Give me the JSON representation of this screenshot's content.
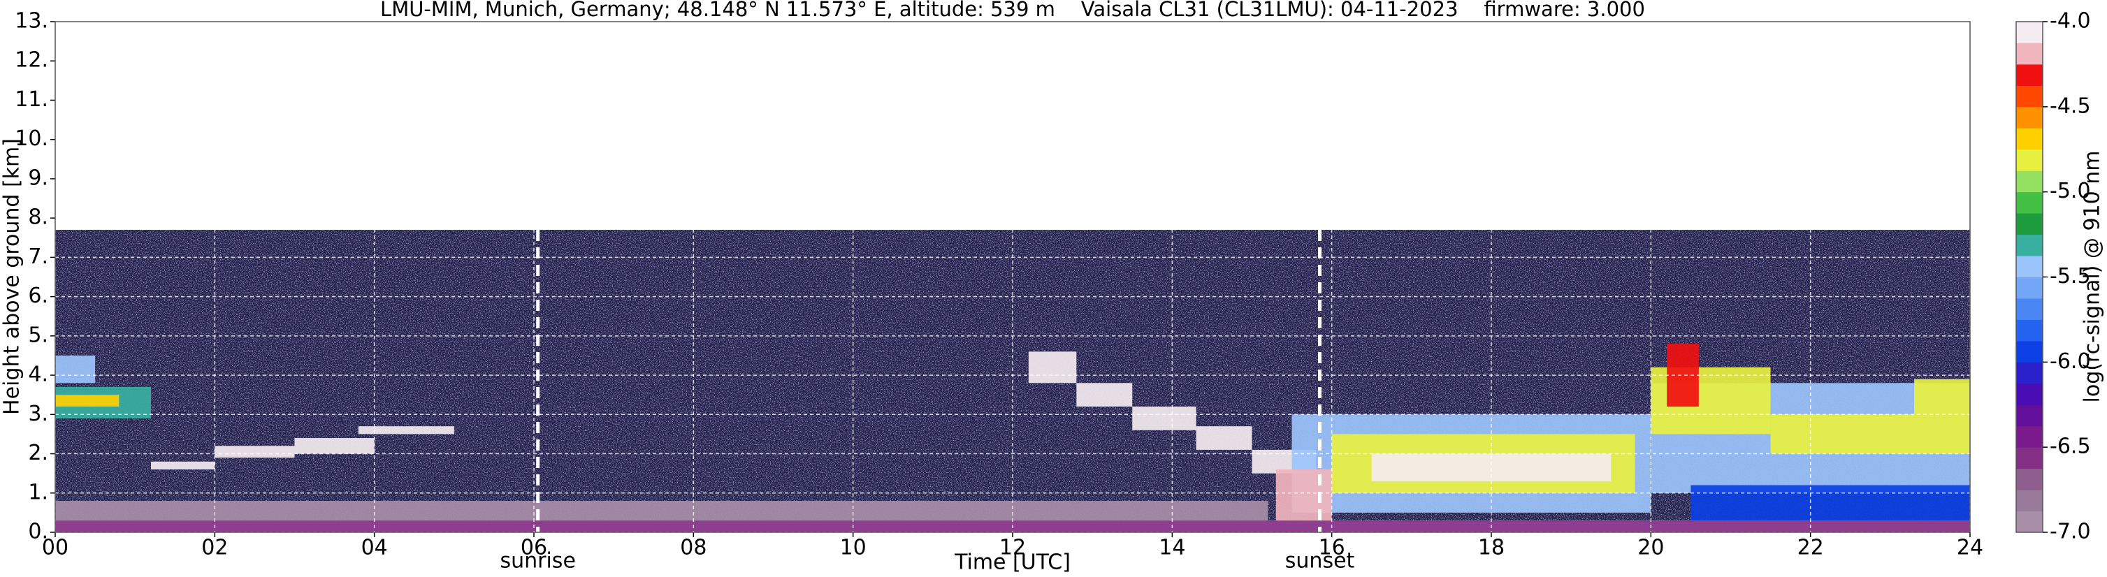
{
  "chart_data": {
    "type": "heatmap",
    "title": "LMU-MIM, Munich, Germany; 48.148° N 11.573° E, altitude: 539 m    Vaisala CL31 (CL31LMU): 04-11-2023    firmware: 3.000",
    "xlabel": "Time [UTC]",
    "ylabel": "Height above ground [km]",
    "xlim": [
      0,
      24
    ],
    "ylim": [
      0,
      13
    ],
    "xticks": [
      {
        "value": 0,
        "label": "00"
      },
      {
        "value": 2,
        "label": "02"
      },
      {
        "value": 4,
        "label": "04"
      },
      {
        "value": 6,
        "label": "06"
      },
      {
        "value": 8,
        "label": "08"
      },
      {
        "value": 10,
        "label": "10"
      },
      {
        "value": 12,
        "label": "12"
      },
      {
        "value": 14,
        "label": "14"
      },
      {
        "value": 16,
        "label": "16"
      },
      {
        "value": 18,
        "label": "18"
      },
      {
        "value": 20,
        "label": "20"
      },
      {
        "value": 22,
        "label": "22"
      },
      {
        "value": 24,
        "label": "24"
      }
    ],
    "yticks": [
      {
        "value": 0,
        "label": "0."
      },
      {
        "value": 1,
        "label": "1."
      },
      {
        "value": 2,
        "label": "2."
      },
      {
        "value": 3,
        "label": "3."
      },
      {
        "value": 4,
        "label": "4."
      },
      {
        "value": 5,
        "label": "5."
      },
      {
        "value": 6,
        "label": "6."
      },
      {
        "value": 7,
        "label": "7."
      },
      {
        "value": 8,
        "label": "8."
      },
      {
        "value": 9,
        "label": "9."
      },
      {
        "value": 10,
        "label": "10."
      },
      {
        "value": 11,
        "label": "11."
      },
      {
        "value": 12,
        "label": "12."
      },
      {
        "value": 13,
        "label": "13."
      }
    ],
    "grid": true,
    "colorbar": {
      "label": "log(rc-signal) @ 910 nm",
      "clim": [
        -7.0,
        -4.0
      ],
      "ticks": [
        {
          "value": -7.0,
          "label": "-7.0"
        },
        {
          "value": -6.5,
          "label": "-6.5"
        },
        {
          "value": -6.0,
          "label": "-6.0"
        },
        {
          "value": -5.5,
          "label": "-5.5"
        },
        {
          "value": -5.0,
          "label": "-5.0"
        },
        {
          "value": -4.5,
          "label": "-4.5"
        },
        {
          "value": -4.0,
          "label": "-4.0"
        }
      ],
      "colors": [
        "#a88ea8",
        "#9a7a9a",
        "#8e5e8e",
        "#842e86",
        "#7a1a8c",
        "#62109c",
        "#4a0cb4",
        "#2a20cc",
        "#0c40e4",
        "#2464f0",
        "#4a86f4",
        "#74a6f8",
        "#9cc4fc",
        "#38b0a0",
        "#1c9c3c",
        "#44c044",
        "#94e060",
        "#e8f040",
        "#ffd000",
        "#ff9000",
        "#ff4800",
        "#f01010",
        "#f0b4bc",
        "#f4ecf0"
      ]
    },
    "noise_region": {
      "x": [
        0,
        24
      ],
      "y": [
        0.3,
        7.7
      ],
      "color": "#1e1e48"
    },
    "cells": [
      {
        "x": [
          0,
          15.2
        ],
        "y": [
          0.3,
          0.8
        ],
        "value": -6.9
      },
      {
        "x": [
          0,
          24
        ],
        "y": [
          0,
          0.3
        ],
        "value": -6.6
      },
      {
        "x": [
          0,
          1.2
        ],
        "y": [
          2.9,
          3.7
        ],
        "value": -5.3
      },
      {
        "x": [
          0,
          0.8
        ],
        "y": [
          3.2,
          3.5
        ],
        "value": -4.7
      },
      {
        "x": [
          0,
          0.5
        ],
        "y": [
          3.8,
          4.5
        ],
        "value": -5.5
      },
      {
        "x": [
          1.2,
          2.0
        ],
        "y": [
          1.6,
          1.8
        ],
        "value": -4.0
      },
      {
        "x": [
          2.0,
          3.0
        ],
        "y": [
          1.9,
          2.2
        ],
        "value": -4.0
      },
      {
        "x": [
          3.0,
          4.0
        ],
        "y": [
          2.0,
          2.4
        ],
        "value": -4.0
      },
      {
        "x": [
          3.8,
          5.0
        ],
        "y": [
          2.5,
          2.7
        ],
        "value": -4.0
      },
      {
        "x": [
          12.2,
          12.8
        ],
        "y": [
          3.8,
          4.6
        ],
        "value": -4.0
      },
      {
        "x": [
          12.8,
          13.5
        ],
        "y": [
          3.2,
          3.8
        ],
        "value": -4.0
      },
      {
        "x": [
          13.5,
          14.3
        ],
        "y": [
          2.6,
          3.2
        ],
        "value": -4.0
      },
      {
        "x": [
          14.3,
          15.0
        ],
        "y": [
          2.1,
          2.7
        ],
        "value": -4.0
      },
      {
        "x": [
          15.0,
          15.8
        ],
        "y": [
          1.5,
          2.1
        ],
        "value": -4.0
      },
      {
        "x": [
          15.5,
          20.0
        ],
        "y": [
          0.5,
          3.0
        ],
        "value": -5.4
      },
      {
        "x": [
          15.3,
          16.0
        ],
        "y": [
          0.3,
          1.6
        ],
        "value": -4.2
      },
      {
        "x": [
          16.0,
          19.8
        ],
        "y": [
          1.0,
          2.5
        ],
        "value": -4.8
      },
      {
        "x": [
          16.5,
          19.5
        ],
        "y": [
          1.3,
          2.0
        ],
        "value": -4.1
      },
      {
        "x": [
          20.0,
          24.0
        ],
        "y": [
          1.0,
          3.8
        ],
        "value": -5.4
      },
      {
        "x": [
          20.0,
          21.5
        ],
        "y": [
          2.5,
          4.2
        ],
        "value": -4.8
      },
      {
        "x": [
          21.5,
          24.0
        ],
        "y": [
          2.0,
          3.0
        ],
        "value": -4.8
      },
      {
        "x": [
          23.3,
          24.0
        ],
        "y": [
          3.0,
          3.9
        ],
        "value": -4.8
      },
      {
        "x": [
          20.2,
          20.6
        ],
        "y": [
          3.2,
          4.8
        ],
        "value": -4.3
      },
      {
        "x": [
          20.5,
          24.0
        ],
        "y": [
          0.3,
          1.2
        ],
        "value": -6.0
      }
    ],
    "annotations": [
      {
        "text": "sunrise",
        "x": 6.05
      },
      {
        "text": "sunset",
        "x": 15.85
      }
    ]
  }
}
